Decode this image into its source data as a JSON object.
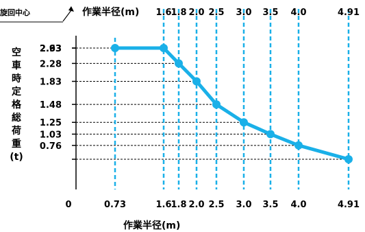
{
  "corner_label": "旋回中心",
  "chart_data": {
    "type": "line",
    "title": "",
    "xlabel": "作業半径(m)",
    "ylabel": "空車時定格総荷重(t)",
    "x": [
      0.73,
      1.6,
      1.8,
      2.0,
      2.5,
      3.0,
      3.5,
      4.0,
      4.91
    ],
    "y": [
      2.93,
      2.93,
      2.63,
      2.28,
      1.83,
      1.48,
      1.25,
      1.03,
      0.76
    ],
    "origin_label": "0",
    "x_tick_labels": [
      "0.73",
      "1.6",
      "1.8",
      "2.0",
      "2.5",
      "3.0",
      "3.5",
      "4.0",
      "4.91"
    ],
    "top_tick_labels": [
      "1.6",
      "1.8",
      "2.0",
      "2.5",
      "3.0",
      "3.5",
      "4.0",
      "4.91"
    ],
    "y_tick_labels": [
      "2.93",
      "2.63",
      "2.28",
      "1.83",
      "1.48",
      "1.25",
      "1.03",
      "0.76"
    ],
    "line_color": "#1ab0e8",
    "grid_color": "#1ab0e8",
    "axis_color": "#000000",
    "grid": true
  }
}
